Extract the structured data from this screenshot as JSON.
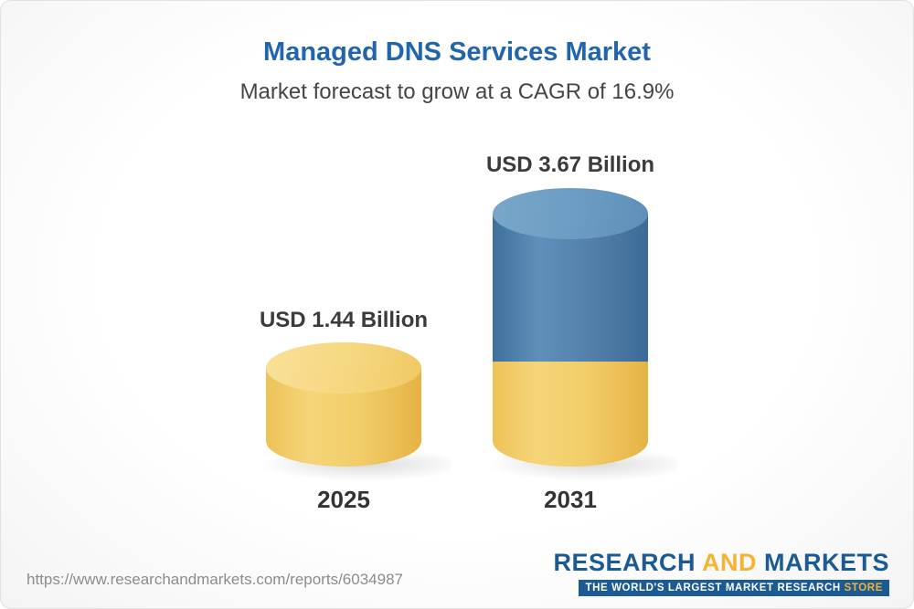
{
  "card": {
    "title": "Managed DNS Services Market",
    "subtitle": "Market forecast to grow at a CAGR of 16.9%"
  },
  "chart_data": {
    "type": "bar",
    "title": "Managed DNS Services Market",
    "subtitle": "Market forecast to grow at a CAGR of 16.9%",
    "cagr_percent": 16.9,
    "unit": "USD Billion",
    "categories": [
      "2025",
      "2031"
    ],
    "values": [
      1.44,
      3.67
    ],
    "value_labels": [
      "USD 1.44 Billion",
      "USD 3.67 Billion"
    ],
    "legend_position": "none",
    "grid": false,
    "colors": {
      "bar_2025": "#f2cd68",
      "bar_2031_upper": "#4d81ad",
      "bar_2031_base": "#f2cd68",
      "title_text": "#2166ad",
      "label_text": "#3b3b3b"
    }
  },
  "footer": {
    "url": "https://www.researchandmarkets.com/reports/6034987",
    "logo": {
      "word1": "RESEARCH",
      "word2": "AND",
      "word3": "MARKETS",
      "tagline_main": "THE WORLD'S LARGEST MARKET RESEARCH ",
      "tagline_accent": "STORE"
    }
  }
}
